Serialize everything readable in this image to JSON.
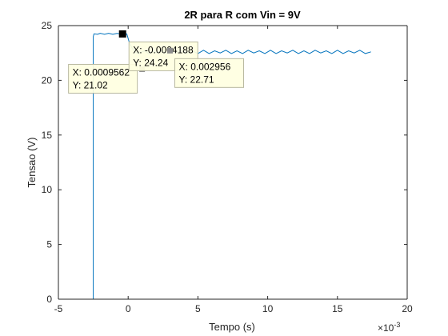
{
  "chart_data": {
    "type": "line",
    "title": "2R para R com Vin = 9V",
    "xlabel": "Tempo (s)",
    "ylabel": "Tensao (V)",
    "x_exponent_label": "×10",
    "x_exponent_power": "-3",
    "xlim": [
      -5,
      20
    ],
    "ylim": [
      0,
      25
    ],
    "xticks": [
      "-5",
      "0",
      "5",
      "10",
      "15",
      "20"
    ],
    "yticks": [
      "0",
      "5",
      "10",
      "15",
      "20",
      "25"
    ],
    "grid": false,
    "line_color": "#0072BD",
    "series": [
      {
        "x": [
          -2.5,
          -2.5,
          -2.45,
          -2.2,
          -2.0,
          -1.7,
          -1.4,
          -1.1,
          -0.8,
          -0.55,
          -0.35,
          -0.1,
          0.1,
          0.3,
          0.5,
          0.7,
          0.9,
          1.2,
          1.5,
          1.8,
          2.1,
          2.4,
          2.7,
          3.0,
          3.4,
          3.8,
          4.2,
          4.6,
          5.0,
          5.4,
          5.8,
          6.2,
          6.6,
          7.0,
          7.4,
          7.8,
          8.2,
          8.6,
          9.0,
          9.4,
          9.8,
          10.2,
          10.6,
          11.0,
          11.4,
          11.8,
          12.2,
          12.6,
          13.0,
          13.4,
          13.8,
          14.2,
          14.6,
          15.0,
          15.4,
          15.8,
          16.2,
          16.6,
          17.0,
          17.4
        ],
        "y": [
          0,
          24.0,
          24.25,
          24.2,
          24.3,
          24.2,
          24.3,
          24.2,
          24.28,
          24.24,
          24.2,
          24.24,
          23.4,
          22.9,
          22.6,
          22.45,
          22.55,
          22.7,
          22.4,
          22.65,
          22.5,
          22.75,
          22.45,
          22.71,
          22.5,
          22.75,
          22.45,
          22.7,
          22.45,
          22.75,
          22.45,
          22.7,
          22.5,
          22.75,
          22.45,
          22.7,
          22.45,
          22.75,
          22.5,
          22.7,
          22.45,
          22.75,
          22.45,
          22.7,
          22.5,
          22.75,
          22.45,
          22.7,
          22.45,
          22.75,
          22.5,
          22.7,
          22.45,
          22.75,
          22.45,
          22.7,
          22.5,
          22.75,
          22.45,
          22.6
        ]
      }
    ],
    "datatips": [
      {
        "x_text": "X: 0.0009562",
        "y_text": "Y: 21.02",
        "x": 1.0,
        "y": 21.02,
        "marker": "small-gray"
      },
      {
        "x_text": "X: -0.0004188",
        "y_text": "Y: 24.24",
        "x": -0.4,
        "y": 24.24,
        "marker": "black"
      },
      {
        "x_text": "X: 0.002956",
        "y_text": "Y: 22.71",
        "x": 3.0,
        "y": 22.71,
        "marker": "small-gray"
      }
    ]
  }
}
